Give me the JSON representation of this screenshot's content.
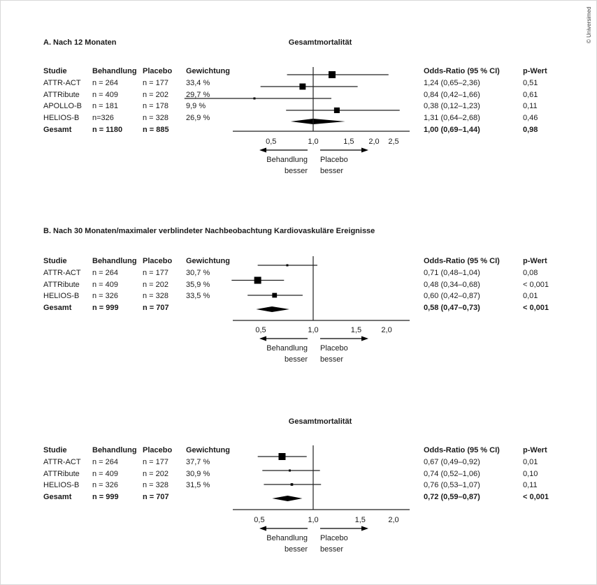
{
  "copyright": "© Universimed",
  "headers": {
    "study": "Studie",
    "treatment": "Behandlung",
    "placebo": "Placebo",
    "weight": "Gewichtung",
    "or": "Odds-Ratio (95 % CI)",
    "p": "p-Wert"
  },
  "direction": {
    "left_1": "Behandlung",
    "left_2": "besser",
    "right_1": "Placebo",
    "right_2": "besser"
  },
  "chart_data": [
    {
      "type": "forest",
      "panel_title": "A. Nach 12 Monaten",
      "title": "Gesamtmortalität",
      "scale": "log",
      "reference": 1.0,
      "ticks": [
        "0,5",
        "1,0",
        "1,5",
        "2,0",
        "2,5"
      ],
      "tick_values": [
        0.5,
        1.0,
        1.5,
        2.0,
        2.5
      ],
      "rows": [
        {
          "study": "ATTR-ACT",
          "treatment": "n = 264",
          "placebo": "n = 177",
          "weight": "33,4 %",
          "or_text": "1,24 (0,65–2,36)",
          "p": "0,51",
          "or": 1.24,
          "lo": 0.65,
          "hi": 2.36,
          "w": 33.4
        },
        {
          "study": "ATTRibute",
          "treatment": "n = 409",
          "placebo": "n = 202",
          "weight": "29,7 %",
          "or_text": "0,84 (0,42–1,66)",
          "p": "0,61",
          "or": 0.84,
          "lo": 0.42,
          "hi": 1.66,
          "w": 29.7
        },
        {
          "study": "APOLLO-B",
          "treatment": "n = 181",
          "placebo": "n = 178",
          "weight": "9,9 %",
          "or_text": "0,38 (0,12–1,23)",
          "p": "0,11",
          "or": 0.38,
          "lo": 0.12,
          "hi": 1.23,
          "w": 9.9
        },
        {
          "study": "HELIOS-B",
          "treatment": "n=326",
          "placebo": "n = 328",
          "weight": "26,9 %",
          "or_text": "1,31 (0,64–2,68)",
          "p": "0,46",
          "or": 1.31,
          "lo": 0.64,
          "hi": 2.68,
          "w": 26.9
        }
      ],
      "total": {
        "study": "Gesamt",
        "treatment": "n = 1180",
        "placebo": "n = 885",
        "or_text": "1,00 (0,69–1,44)",
        "p": "0,98",
        "or": 1.0,
        "lo": 0.69,
        "hi": 1.44
      }
    },
    {
      "type": "forest",
      "panel_title": "B. Nach 30 Monaten/maximaler verblindeter Nachbeobachtung",
      "title": "Kardiovaskuläre Ereignisse",
      "scale": "log",
      "reference": 1.0,
      "ticks": [
        "0,5",
        "1,0",
        "1,5",
        "2,0"
      ],
      "tick_values": [
        0.5,
        1.0,
        1.5,
        2.0
      ],
      "rows": [
        {
          "study": "ATTR-ACT",
          "treatment": "n = 264",
          "placebo": "n = 177",
          "weight": "30,7 %",
          "or_text": "0,71 (0,48–1,04)",
          "p": "0,08",
          "or": 0.71,
          "lo": 0.48,
          "hi": 1.04,
          "w": 30.7
        },
        {
          "study": "ATTRibute",
          "treatment": "n = 409",
          "placebo": "n = 202",
          "weight": "35,9 %",
          "or_text": "0,48 (0,34–0,68)",
          "p": "< 0,001",
          "or": 0.48,
          "lo": 0.34,
          "hi": 0.68,
          "w": 35.9
        },
        {
          "study": "HELIOS-B",
          "treatment": "n = 326",
          "placebo": "n = 328",
          "weight": "33,5 %",
          "or_text": "0,60 (0,42–0,87)",
          "p": "0,01",
          "or": 0.6,
          "lo": 0.42,
          "hi": 0.87,
          "w": 33.5
        }
      ],
      "total": {
        "study": "Gesamt",
        "treatment": "n = 999",
        "placebo": "n = 707",
        "or_text": "0,58 (0,47–0,73)",
        "p": "< 0,001",
        "or": 0.58,
        "lo": 0.47,
        "hi": 0.73
      }
    },
    {
      "type": "forest",
      "panel_title": "",
      "title": "Gesamtmortalität",
      "scale": "log",
      "reference": 1.0,
      "ticks": [
        "0,5",
        "1,0",
        "1,5",
        "2,0"
      ],
      "tick_values": [
        0.5,
        1.0,
        1.5,
        2.0
      ],
      "rows": [
        {
          "study": "ATTR-ACT",
          "treatment": "n = 264",
          "placebo": "n = 177",
          "weight": "37,7 %",
          "or_text": "0,67 (0,49–0,92)",
          "p": "0,01",
          "or": 0.67,
          "lo": 0.49,
          "hi": 0.92,
          "w": 37.7
        },
        {
          "study": "ATTRibute",
          "treatment": "n = 409",
          "placebo": "n = 202",
          "weight": "30,9 %",
          "or_text": "0,74 (0,52–1,06)",
          "p": "0,10",
          "or": 0.74,
          "lo": 0.52,
          "hi": 1.06,
          "w": 30.9
        },
        {
          "study": "HELIOS-B",
          "treatment": "n = 326",
          "placebo": "n = 328",
          "weight": "31,5 %",
          "or_text": "0,76 (0,53–1,07)",
          "p": "0,11",
          "or": 0.76,
          "lo": 0.53,
          "hi": 1.07,
          "w": 31.5
        }
      ],
      "total": {
        "study": "Gesamt",
        "treatment": "n = 999",
        "placebo": "n = 707",
        "or_text": "0,72 (0,59–0,87)",
        "p": "< 0,001",
        "or": 0.72,
        "lo": 0.59,
        "hi": 0.87
      }
    }
  ]
}
